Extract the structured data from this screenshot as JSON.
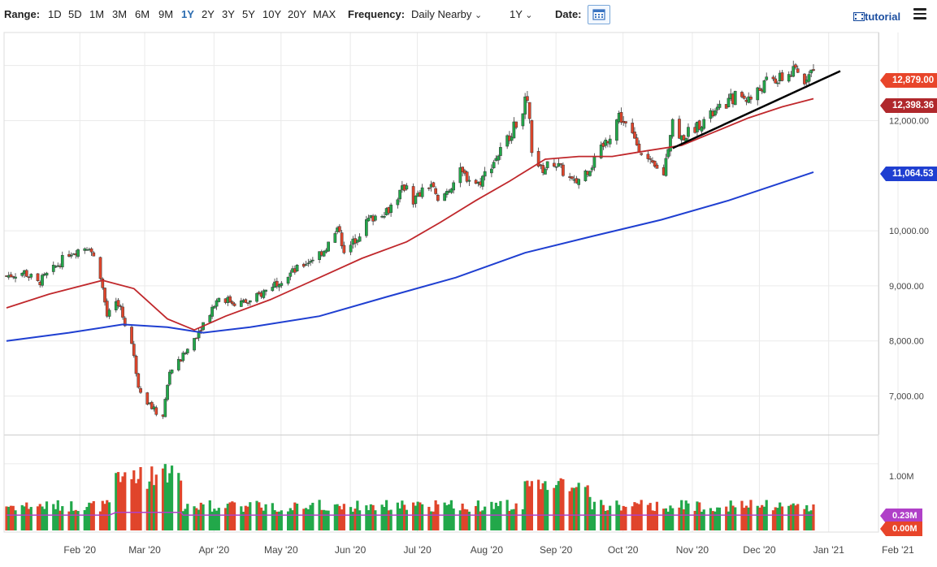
{
  "toolbar": {
    "range_label": "Range:",
    "ranges": [
      "1D",
      "5D",
      "1M",
      "3M",
      "6M",
      "9M",
      "1Y",
      "2Y",
      "3Y",
      "5Y",
      "10Y",
      "20Y",
      "MAX"
    ],
    "active_range": "1Y",
    "frequency_label": "Frequency:",
    "frequency_value": "Daily Nearby",
    "period_value": "1Y",
    "date_label": "Date:",
    "tutorial_label": "tutorial",
    "icons": [
      "calendar-icon",
      "tutorial-icon",
      "hamburger-menu-icon",
      "chevron-down-icon"
    ]
  },
  "colors": {
    "up_candle": "#22a84a",
    "down_candle": "#e0452b",
    "ma_short": "#c0282c",
    "ma_long": "#1f3fd1",
    "trendline": "#000000",
    "volume_avg": "#b040c8",
    "badge_last": "#e8452a",
    "badge_ma_short": "#b0282c",
    "badge_ma_long": "#1f3fd1",
    "badge_vol": "#b040c8",
    "badge_vol2": "#e8452a"
  },
  "chart_data": {
    "type": "candlestick",
    "x_start": "2020-01-13",
    "x_end": "2021-01-08",
    "x_ticks": [
      "Feb '20",
      "Mar '20",
      "Apr '20",
      "May '20",
      "Jun '20",
      "Jul '20",
      "Aug '20",
      "Sep '20",
      "Oct '20",
      "Nov '20",
      "Dec '20",
      "Jan '21",
      "Feb '21"
    ],
    "y_ticks": [
      "7,000.00",
      "8,000.00",
      "9,000.00",
      "10,000.00",
      "12,000.00"
    ],
    "ylim": [
      6300,
      13600
    ],
    "grid": true,
    "price_series": {
      "name": "Close",
      "points": [
        [
          "2020-01-13",
          9180
        ],
        [
          "2020-01-21",
          9250
        ],
        [
          "2020-01-27",
          9050
        ],
        [
          "2020-02-03",
          9300
        ],
        [
          "2020-02-10",
          9600
        ],
        [
          "2020-02-19",
          9730
        ],
        [
          "2020-02-24",
          9200
        ],
        [
          "2020-02-27",
          8450
        ],
        [
          "2020-03-03",
          8700
        ],
        [
          "2020-03-09",
          7950
        ],
        [
          "2020-03-12",
          7200
        ],
        [
          "2020-03-16",
          6900
        ],
        [
          "2020-03-20",
          6700
        ],
        [
          "2020-03-23",
          6650
        ],
        [
          "2020-03-26",
          7450
        ],
        [
          "2020-03-31",
          7650
        ],
        [
          "2020-04-06",
          8050
        ],
        [
          "2020-04-14",
          8600
        ],
        [
          "2020-04-17",
          8800
        ],
        [
          "2020-04-24",
          8700
        ],
        [
          "2020-05-01",
          8700
        ],
        [
          "2020-05-12",
          9050
        ],
        [
          "2020-05-22",
          9300
        ],
        [
          "2020-06-03",
          9650
        ],
        [
          "2020-06-10",
          10050
        ],
        [
          "2020-06-12",
          9550
        ],
        [
          "2020-06-23",
          10200
        ],
        [
          "2020-07-02",
          10400
        ],
        [
          "2020-07-10",
          10850
        ],
        [
          "2020-07-13",
          10550
        ],
        [
          "2020-07-21",
          10850
        ],
        [
          "2020-07-24",
          10500
        ],
        [
          "2020-08-03",
          11050
        ],
        [
          "2020-08-11",
          10850
        ],
        [
          "2020-08-21",
          11450
        ],
        [
          "2020-08-28",
          11950
        ],
        [
          "2020-09-02",
          12420
        ],
        [
          "2020-09-04",
          11500
        ],
        [
          "2020-09-08",
          11100
        ],
        [
          "2020-09-14",
          11250
        ],
        [
          "2020-09-23",
          10850
        ],
        [
          "2020-10-02",
          11250
        ],
        [
          "2020-10-09",
          11750
        ],
        [
          "2020-10-13",
          12100
        ],
        [
          "2020-10-20",
          11650
        ],
        [
          "2020-10-28",
          11150
        ],
        [
          "2020-11-02",
          11050
        ],
        [
          "2020-11-06",
          12050
        ],
        [
          "2020-11-09",
          11650
        ],
        [
          "2020-11-18",
          11950
        ],
        [
          "2020-11-27",
          12200
        ],
        [
          "2020-12-04",
          12450
        ],
        [
          "2020-12-11",
          12400
        ],
        [
          "2020-12-18",
          12700
        ],
        [
          "2020-12-24",
          12750
        ],
        [
          "2020-12-31",
          12900
        ],
        [
          "2021-01-04",
          12700
        ],
        [
          "2021-01-06",
          12950
        ],
        [
          "2021-01-08",
          12879
        ]
      ]
    },
    "ma_short": {
      "name": "12,398.36",
      "points": [
        [
          "2020-01-13",
          8600
        ],
        [
          "2020-02-01",
          8850
        ],
        [
          "2020-02-25",
          9100
        ],
        [
          "2020-03-10",
          8950
        ],
        [
          "2020-03-25",
          8400
        ],
        [
          "2020-04-06",
          8200
        ],
        [
          "2020-04-20",
          8450
        ],
        [
          "2020-05-10",
          8750
        ],
        [
          "2020-06-01",
          9150
        ],
        [
          "2020-06-20",
          9500
        ],
        [
          "2020-07-10",
          9800
        ],
        [
          "2020-07-25",
          10150
        ],
        [
          "2020-08-10",
          10550
        ],
        [
          "2020-08-25",
          10900
        ],
        [
          "2020-09-10",
          11300
        ],
        [
          "2020-09-25",
          11350
        ],
        [
          "2020-10-10",
          11350
        ],
        [
          "2020-10-25",
          11450
        ],
        [
          "2020-11-10",
          11550
        ],
        [
          "2020-11-25",
          11800
        ],
        [
          "2020-12-10",
          12050
        ],
        [
          "2020-12-25",
          12250
        ],
        [
          "2021-01-08",
          12398
        ]
      ]
    },
    "ma_long": {
      "name": "11,064.53",
      "points": [
        [
          "2020-01-13",
          8000
        ],
        [
          "2020-02-10",
          8150
        ],
        [
          "2020-03-05",
          8300
        ],
        [
          "2020-03-25",
          8250
        ],
        [
          "2020-04-10",
          8150
        ],
        [
          "2020-05-01",
          8250
        ],
        [
          "2020-06-01",
          8450
        ],
        [
          "2020-07-01",
          8800
        ],
        [
          "2020-08-01",
          9150
        ],
        [
          "2020-09-01",
          9600
        ],
        [
          "2020-10-01",
          9900
        ],
        [
          "2020-11-01",
          10200
        ],
        [
          "2020-12-01",
          10550
        ],
        [
          "2021-01-08",
          11065
        ]
      ]
    },
    "trendline": [
      [
        "2020-11-06",
        11500
      ],
      [
        "2021-01-20",
        12900
      ]
    ],
    "last_price": "12,879.00",
    "volume": {
      "y_ticks": [
        "1.00M"
      ],
      "ylim": [
        0,
        1400000
      ],
      "last_volume": "0.23M",
      "secondary_value": "0.00M"
    }
  }
}
